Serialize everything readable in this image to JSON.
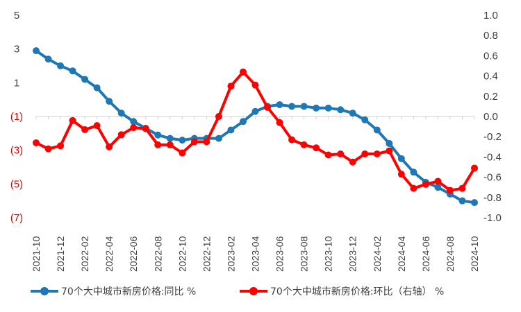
{
  "chart_data": {
    "type": "line",
    "x": [
      "2021-10",
      "2021-11",
      "2021-12",
      "2022-01",
      "2022-02",
      "2022-03",
      "2022-04",
      "2022-05",
      "2022-06",
      "2022-07",
      "2022-08",
      "2022-09",
      "2022-10",
      "2022-11",
      "2022-12",
      "2023-01",
      "2023-02",
      "2023-03",
      "2023-04",
      "2023-05",
      "2023-06",
      "2023-07",
      "2023-08",
      "2023-09",
      "2023-10",
      "2023-11",
      "2023-12",
      "2024-01",
      "2024-02",
      "2024-03",
      "2024-04",
      "2024-05",
      "2024-06",
      "2024-07",
      "2024-08",
      "2024-09",
      "2024-10"
    ],
    "x_tick_labels": [
      "2021-10",
      "2021-12",
      "2022-02",
      "2022-04",
      "2022-06",
      "2022-08",
      "2022-10",
      "2022-12",
      "2023-02",
      "2023-04",
      "2023-06",
      "2023-08",
      "2023-10",
      "2023-12",
      "2024-02",
      "2024-04",
      "2024-06",
      "2024-08",
      "2024-10"
    ],
    "y_left": {
      "min": -7,
      "max": 5,
      "ticks": [
        5,
        3,
        1,
        -1,
        -3,
        -5,
        -7
      ],
      "tick_labels": [
        "5",
        "3",
        "1",
        "(1)",
        "(3)",
        "(5)",
        "(7)"
      ]
    },
    "y_right": {
      "min": -1.0,
      "max": 1.0,
      "ticks": [
        1.0,
        0.8,
        0.6,
        0.4,
        0.2,
        0.0,
        -0.2,
        -0.4,
        -0.6,
        -0.8,
        -1.0
      ],
      "tick_labels": [
        "1.0",
        "0.8",
        "0.6",
        "0.4",
        "0.2",
        "0.0",
        "-0.2",
        "-0.4",
        "-0.6",
        "-0.8",
        "-1.0"
      ]
    },
    "series": [
      {
        "name": "70个大中城市新房价格:同比",
        "axis": "left",
        "color": "#1f77b4",
        "values": [
          2.9,
          2.4,
          2.0,
          1.7,
          1.2,
          0.7,
          -0.1,
          -0.8,
          -1.3,
          -1.7,
          -2.1,
          -2.3,
          -2.4,
          -2.3,
          -2.3,
          -2.3,
          -1.8,
          -1.3,
          -0.7,
          -0.4,
          -0.3,
          -0.4,
          -0.4,
          -0.5,
          -0.5,
          -0.6,
          -0.8,
          -1.2,
          -1.8,
          -2.6,
          -3.5,
          -4.3,
          -4.9,
          -5.2,
          -5.6,
          -6.0,
          -6.1
        ]
      },
      {
        "name": "70个大中城市新房价格:环比（右轴）",
        "axis": "right",
        "color": "#ff0000",
        "values": [
          -0.26,
          -0.32,
          -0.29,
          -0.04,
          -0.13,
          -0.09,
          -0.3,
          -0.18,
          -0.11,
          -0.12,
          -0.28,
          -0.28,
          -0.36,
          -0.25,
          -0.25,
          0.0,
          0.3,
          0.44,
          0.31,
          0.09,
          -0.06,
          -0.23,
          -0.28,
          -0.31,
          -0.38,
          -0.37,
          -0.45,
          -0.37,
          -0.37,
          -0.34,
          -0.57,
          -0.71,
          -0.67,
          -0.64,
          -0.73,
          -0.71,
          -0.51
        ]
      }
    ],
    "legend": {
      "position": "bottom",
      "items": [
        "70个大中城市新房价格:同比 %",
        "70个大中城市新房价格:环比（右轴） %"
      ]
    },
    "grid": false
  }
}
